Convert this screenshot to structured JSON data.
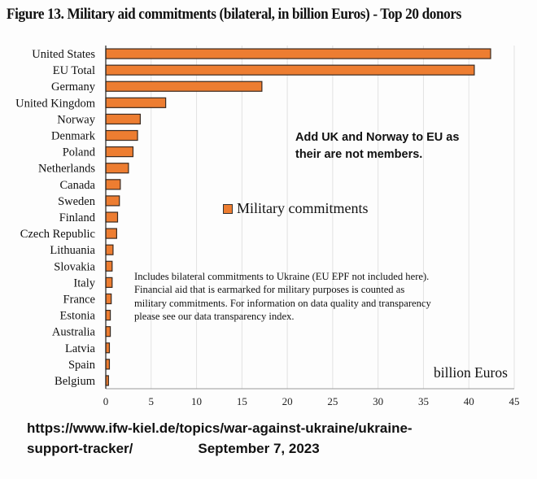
{
  "chart_data": {
    "type": "bar",
    "orientation": "horizontal",
    "title": "Figure 13. Military aid commitments (bilateral, in billion Euros) - Top 20 donors",
    "categories": [
      "United States",
      "EU Total",
      "Germany",
      "United Kingdom",
      "Norway",
      "Denmark",
      "Poland",
      "Netherlands",
      "Canada",
      "Sweden",
      "Finland",
      "Czech Republic",
      "Lithuania",
      "Slovakia",
      "Italy",
      "France",
      "Estonia",
      "Australia",
      "Latvia",
      "Spain",
      "Belgium"
    ],
    "series": [
      {
        "name": "Military commitments",
        "values": [
          42.4,
          40.6,
          17.2,
          6.6,
          3.8,
          3.5,
          3.0,
          2.5,
          1.6,
          1.5,
          1.3,
          1.2,
          0.8,
          0.7,
          0.7,
          0.6,
          0.5,
          0.5,
          0.4,
          0.4,
          0.3
        ]
      }
    ],
    "xlabel": "billion Euros",
    "xlim": [
      0,
      45
    ],
    "xticks": [
      0,
      5,
      10,
      15,
      20,
      25,
      30,
      35,
      40,
      45
    ],
    "grid": true,
    "legend_position": "center",
    "bar_color": "#ed7d31",
    "annotations": [
      "Add UK and Norway to EU as their are not members.",
      "Includes bilateral commitments to Ukraine (EU EPF not included here).",
      "Financial aid that is earmarked for military purposes is counted as",
      "military commitments. For information on data quality and transparency",
      "please see our data transparency index."
    ]
  },
  "footer": {
    "url_line1": "https://www.ifw-kiel.de/topics/war-against-ukraine/ukraine-",
    "url_line2": "support-tracker/",
    "date": "September 7, 2023"
  }
}
